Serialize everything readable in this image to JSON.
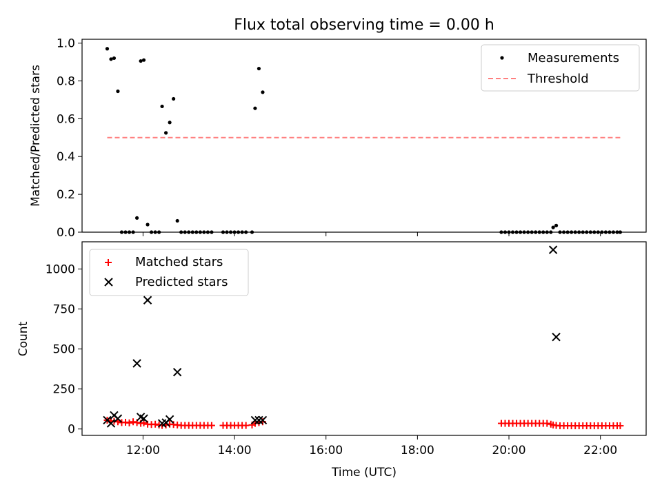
{
  "chart_data": [
    {
      "type": "scatter",
      "title": "Flux total observing time = 0.00 h",
      "xlabel": "",
      "ylabel": "Matched/Predicted stars",
      "ylim": [
        0,
        1.02
      ],
      "yticks": [
        "0.0",
        "0.2",
        "0.4",
        "0.6",
        "0.8",
        "1.0"
      ],
      "legend": {
        "position": "top-right",
        "entries": [
          "Measurements",
          "Threshold"
        ]
      },
      "series": [
        {
          "name": "Measurements",
          "marker": "dot",
          "color": "#000000",
          "points": [
            [
              "11:13",
              0.97
            ],
            [
              "11:18",
              0.915
            ],
            [
              "11:22",
              0.92
            ],
            [
              "11:27",
              0.745
            ],
            [
              "11:32",
              0.0
            ],
            [
              "11:37",
              0.0
            ],
            [
              "11:42",
              0.0
            ],
            [
              "11:47",
              0.0
            ],
            [
              "11:52",
              0.075
            ],
            [
              "11:57",
              0.905
            ],
            [
              "12:01",
              0.91
            ],
            [
              "12:06",
              0.04
            ],
            [
              "12:11",
              0.0
            ],
            [
              "12:16",
              0.0
            ],
            [
              "12:21",
              0.0
            ],
            [
              "12:25",
              0.665
            ],
            [
              "12:30",
              0.525
            ],
            [
              "12:35",
              0.58
            ],
            [
              "12:40",
              0.705
            ],
            [
              "12:45",
              0.06
            ],
            [
              "12:50",
              0.0
            ],
            [
              "12:55",
              0.0
            ],
            [
              "13:00",
              0.0
            ],
            [
              "13:05",
              0.0
            ],
            [
              "13:10",
              0.0
            ],
            [
              "13:15",
              0.0
            ],
            [
              "13:20",
              0.0
            ],
            [
              "13:25",
              0.0
            ],
            [
              "13:30",
              0.0
            ],
            [
              "13:45",
              0.0
            ],
            [
              "13:50",
              0.0
            ],
            [
              "13:55",
              0.0
            ],
            [
              "14:00",
              0.0
            ],
            [
              "14:05",
              0.0
            ],
            [
              "14:10",
              0.0
            ],
            [
              "14:15",
              0.0
            ],
            [
              "14:23",
              0.0
            ],
            [
              "14:27",
              0.655
            ],
            [
              "14:32",
              0.865
            ],
            [
              "14:37",
              0.74
            ],
            [
              "19:50",
              0.0
            ],
            [
              "19:55",
              0.0
            ],
            [
              "20:00",
              0.0
            ],
            [
              "20:05",
              0.0
            ],
            [
              "20:10",
              0.0
            ],
            [
              "20:15",
              0.0
            ],
            [
              "20:20",
              0.0
            ],
            [
              "20:25",
              0.0
            ],
            [
              "20:30",
              0.0
            ],
            [
              "20:35",
              0.0
            ],
            [
              "20:40",
              0.0
            ],
            [
              "20:45",
              0.0
            ],
            [
              "20:50",
              0.0
            ],
            [
              "20:55",
              0.0
            ],
            [
              "20:58",
              0.025
            ],
            [
              "21:02",
              0.035
            ],
            [
              "21:07",
              0.0
            ],
            [
              "21:12",
              0.0
            ],
            [
              "21:17",
              0.0
            ],
            [
              "21:22",
              0.0
            ],
            [
              "21:27",
              0.0
            ],
            [
              "21:32",
              0.0
            ],
            [
              "21:37",
              0.0
            ],
            [
              "21:42",
              0.0
            ],
            [
              "21:47",
              0.0
            ],
            [
              "21:52",
              0.0
            ],
            [
              "21:57",
              0.0
            ],
            [
              "22:02",
              0.0
            ],
            [
              "22:07",
              0.0
            ],
            [
              "22:12",
              0.0
            ],
            [
              "22:17",
              0.0
            ],
            [
              "22:22",
              0.0
            ],
            [
              "22:26",
              0.0
            ]
          ]
        },
        {
          "name": "Threshold",
          "type": "line",
          "style": "dashed",
          "color": "#ff7f7f",
          "points": [
            [
              "11:13",
              0.5
            ],
            [
              "22:26",
              0.5
            ]
          ]
        }
      ]
    },
    {
      "type": "scatter",
      "title": "",
      "xlabel": "Time (UTC)",
      "ylabel": "Count",
      "ylim": [
        -40,
        1170
      ],
      "yticks": [
        "0",
        "250",
        "500",
        "750",
        "1000"
      ],
      "xlim": [
        "10:40",
        "23:00"
      ],
      "xticks": [
        "12:00",
        "14:00",
        "16:00",
        "18:00",
        "20:00",
        "22:00"
      ],
      "legend": {
        "position": "top-left",
        "entries": [
          "Matched stars",
          "Predicted stars"
        ]
      },
      "series": [
        {
          "name": "Matched stars",
          "marker": "plus",
          "color": "#ff0000",
          "points": [
            [
              "11:13",
              55
            ],
            [
              "11:18",
              50
            ],
            [
              "11:22",
              48
            ],
            [
              "11:27",
              45
            ],
            [
              "11:32",
              40
            ],
            [
              "11:37",
              42
            ],
            [
              "11:42",
              38
            ],
            [
              "11:47",
              45
            ],
            [
              "11:52",
              40
            ],
            [
              "11:57",
              35
            ],
            [
              "12:01",
              38
            ],
            [
              "12:06",
              30
            ],
            [
              "12:11",
              28
            ],
            [
              "12:16",
              30
            ],
            [
              "12:21",
              25
            ],
            [
              "12:25",
              22
            ],
            [
              "12:30",
              25
            ],
            [
              "12:35",
              30
            ],
            [
              "12:40",
              28
            ],
            [
              "12:45",
              25
            ],
            [
              "12:50",
              22
            ],
            [
              "12:55",
              22
            ],
            [
              "13:00",
              22
            ],
            [
              "13:05",
              22
            ],
            [
              "13:10",
              22
            ],
            [
              "13:15",
              22
            ],
            [
              "13:20",
              22
            ],
            [
              "13:25",
              22
            ],
            [
              "13:30",
              22
            ],
            [
              "13:45",
              22
            ],
            [
              "13:50",
              22
            ],
            [
              "13:55",
              22
            ],
            [
              "14:00",
              22
            ],
            [
              "14:05",
              22
            ],
            [
              "14:10",
              22
            ],
            [
              "14:15",
              22
            ],
            [
              "14:23",
              25
            ],
            [
              "14:27",
              35
            ],
            [
              "14:32",
              40
            ],
            [
              "14:37",
              45
            ],
            [
              "19:50",
              35
            ],
            [
              "19:55",
              35
            ],
            [
              "20:00",
              35
            ],
            [
              "20:05",
              35
            ],
            [
              "20:10",
              35
            ],
            [
              "20:15",
              35
            ],
            [
              "20:20",
              35
            ],
            [
              "20:25",
              35
            ],
            [
              "20:30",
              35
            ],
            [
              "20:35",
              35
            ],
            [
              "20:40",
              35
            ],
            [
              "20:45",
              35
            ],
            [
              "20:50",
              35
            ],
            [
              "20:55",
              30
            ],
            [
              "20:58",
              25
            ],
            [
              "21:02",
              22
            ],
            [
              "21:07",
              20
            ],
            [
              "21:12",
              20
            ],
            [
              "21:17",
              20
            ],
            [
              "21:22",
              20
            ],
            [
              "21:27",
              20
            ],
            [
              "21:32",
              20
            ],
            [
              "21:37",
              20
            ],
            [
              "21:42",
              20
            ],
            [
              "21:47",
              20
            ],
            [
              "21:52",
              20
            ],
            [
              "21:57",
              20
            ],
            [
              "22:02",
              20
            ],
            [
              "22:07",
              20
            ],
            [
              "22:12",
              20
            ],
            [
              "22:17",
              20
            ],
            [
              "22:22",
              20
            ],
            [
              "22:26",
              20
            ]
          ]
        },
        {
          "name": "Predicted stars",
          "marker": "x",
          "color": "#000000",
          "points": [
            [
              "11:13",
              55
            ],
            [
              "11:18",
              35
            ],
            [
              "11:22",
              85
            ],
            [
              "11:27",
              65
            ],
            [
              "11:52",
              410
            ],
            [
              "11:57",
              75
            ],
            [
              "12:01",
              65
            ],
            [
              "12:06",
              805
            ],
            [
              "12:25",
              35
            ],
            [
              "12:30",
              40
            ],
            [
              "12:35",
              60
            ],
            [
              "12:45",
              355
            ],
            [
              "14:27",
              55
            ],
            [
              "14:32",
              55
            ],
            [
              "14:37",
              55
            ],
            [
              "20:58",
              1120
            ],
            [
              "21:02",
              575
            ]
          ]
        }
      ]
    }
  ]
}
